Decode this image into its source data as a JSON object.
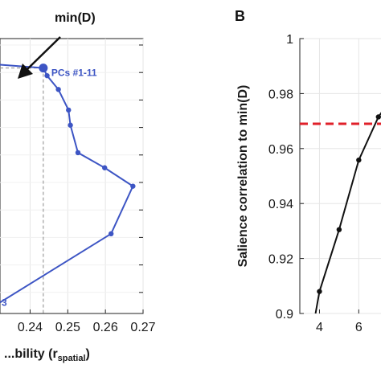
{
  "chart_data": [
    {
      "type": "line",
      "panel": "",
      "title": "",
      "xlabel": "...bility (r",
      "xlabel_subscript": "spatial",
      "xlabel_suffix": ")",
      "ylabel": "",
      "xlim": [
        0.232,
        0.27
      ],
      "ylim": [
        0,
        1
      ],
      "x_ticks": [
        "0.24",
        "0.25",
        "0.26",
        "0.27"
      ],
      "x_tick_values": [
        0.24,
        0.25,
        0.26,
        0.27
      ],
      "grid": true,
      "series": [
        {
          "color": "#3d55c4",
          "points": [
            {
              "x": 0.232,
              "y": 0.905
            },
            {
              "x": 0.2435,
              "y": 0.893
            },
            {
              "x": 0.2445,
              "y": 0.865
            },
            {
              "x": 0.2475,
              "y": 0.815
            },
            {
              "x": 0.2502,
              "y": 0.74
            },
            {
              "x": 0.2507,
              "y": 0.685
            },
            {
              "x": 0.2527,
              "y": 0.585
            },
            {
              "x": 0.2598,
              "y": 0.53
            },
            {
              "x": 0.2673,
              "y": 0.463
            },
            {
              "x": 0.2615,
              "y": 0.29
            },
            {
              "x": 0.232,
              "y": 0.04
            }
          ]
        }
      ],
      "highlight_point": {
        "x": 0.2435,
        "y": 0.893
      },
      "annotations": {
        "pcs_label": "PCs #1-11",
        "bottom_label": "3",
        "min_label": "min(D)"
      }
    },
    {
      "type": "line",
      "panel": "B",
      "title": "",
      "xlabel": "",
      "ylabel": "Salience correlation to min(D)",
      "xlim": [
        3,
        7.5
      ],
      "ylim": [
        0.9,
        1.0
      ],
      "x_ticks": [
        "4",
        "6"
      ],
      "x_tick_values": [
        4,
        6
      ],
      "y_ticks": [
        "0.9",
        "0.92",
        "0.94",
        "0.96",
        "0.98",
        "1"
      ],
      "y_tick_values": [
        0.9,
        0.92,
        0.94,
        0.96,
        0.98,
        1.0
      ],
      "grid": true,
      "series": [
        {
          "color": "#111111",
          "points": [
            {
              "x": 3.8,
              "y": 0.9
            },
            {
              "x": 4,
              "y": 0.908
            },
            {
              "x": 5,
              "y": 0.9305
            },
            {
              "x": 6,
              "y": 0.9558
            },
            {
              "x": 7,
              "y": 0.9715
            },
            {
              "x": 7.35,
              "y": 0.975
            }
          ]
        }
      ],
      "reference_line": {
        "y": 0.969,
        "color": "#e0202a",
        "style": "dashed"
      }
    }
  ]
}
